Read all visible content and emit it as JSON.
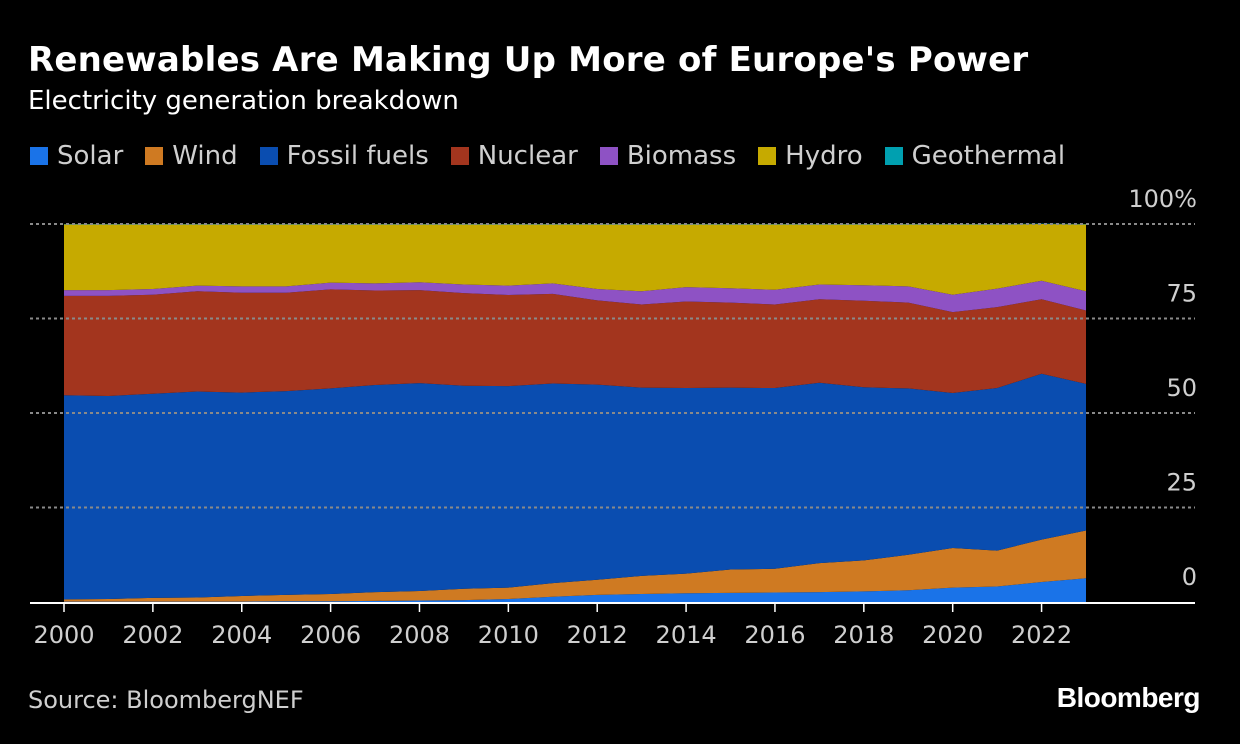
{
  "header": {
    "title": "Renewables Are Making Up More of Europe's Power",
    "subtitle": "Electricity generation breakdown"
  },
  "footer": {
    "source": "Source: BloombergNEF",
    "brand": "Bloomberg"
  },
  "chart_data": {
    "type": "area",
    "stacked": true,
    "title": "Renewables Are Making Up More of Europe's Power",
    "subtitle": "Electricity generation breakdown",
    "xlabel": "",
    "ylabel": "",
    "ylim": [
      0,
      100
    ],
    "y_ticks": [
      0,
      25,
      50,
      75,
      100
    ],
    "y_tick_labels": [
      "0",
      "25",
      "50",
      "75",
      "100%"
    ],
    "y_axis_side": "right",
    "x_ticks": [
      2000,
      2002,
      2004,
      2006,
      2008,
      2010,
      2012,
      2014,
      2016,
      2018,
      2020,
      2022
    ],
    "x_tick_labels": [
      "2000",
      "2002",
      "2004",
      "2006",
      "2008",
      "2010",
      "2012",
      "2014",
      "2016",
      "2018",
      "2020",
      "2022"
    ],
    "grid": "horizontal dotted",
    "legend_position": "top",
    "x": [
      2000,
      2001,
      2002,
      2003,
      2004,
      2005,
      2006,
      2007,
      2008,
      2009,
      2010,
      2011,
      2012,
      2013,
      2014,
      2015,
      2016,
      2017,
      2018,
      2019,
      2020,
      2021,
      2022,
      2023
    ],
    "series": [
      {
        "name": "Solar",
        "color": "#1a73e8",
        "values": [
          0.1,
          0.1,
          0.1,
          0.1,
          0.1,
          0.2,
          0.2,
          0.3,
          0.4,
          0.5,
          0.8,
          1.4,
          1.9,
          2.1,
          2.3,
          2.4,
          2.5,
          2.6,
          2.8,
          3.1,
          3.8,
          4.1,
          5.3,
          6.3
        ]
      },
      {
        "name": "Wind",
        "color": "#cf7a22",
        "values": [
          0.6,
          0.7,
          1.0,
          1.1,
          1.5,
          1.7,
          1.9,
          2.3,
          2.5,
          3.0,
          3.0,
          3.6,
          4.0,
          4.8,
          5.2,
          6.2,
          6.3,
          7.7,
          8.2,
          9.4,
          10.5,
          9.5,
          11.2,
          12.6
        ]
      },
      {
        "name": "Fossil fuels",
        "color": "#0a4db0",
        "values": [
          54.0,
          53.7,
          54.0,
          54.5,
          53.8,
          53.9,
          54.4,
          54.8,
          55.0,
          53.7,
          53.3,
          52.8,
          51.6,
          49.8,
          49.1,
          48.1,
          47.8,
          47.7,
          45.8,
          44.0,
          41.0,
          43.0,
          43.9,
          38.8
        ]
      },
      {
        "name": "Nuclear",
        "color": "#a3351e",
        "values": [
          26.3,
          26.5,
          26.2,
          26.5,
          26.4,
          26.0,
          26.2,
          25.0,
          24.6,
          24.5,
          24.1,
          23.7,
          22.3,
          22.0,
          22.9,
          22.5,
          22.1,
          22.1,
          22.9,
          22.7,
          21.4,
          21.4,
          19.7,
          19.4
        ]
      },
      {
        "name": "Biomass",
        "color": "#8e52c4",
        "values": [
          1.5,
          1.5,
          1.5,
          1.5,
          1.7,
          1.7,
          1.8,
          1.9,
          2.1,
          2.3,
          2.5,
          2.8,
          3.0,
          3.5,
          3.8,
          3.8,
          3.9,
          3.9,
          4.1,
          4.3,
          4.6,
          4.9,
          4.9,
          5.1
        ]
      },
      {
        "name": "Hydro",
        "color": "#c6aa00",
        "values": [
          17.4,
          17.4,
          17.1,
          16.2,
          16.4,
          16.4,
          15.4,
          15.6,
          15.3,
          15.9,
          16.2,
          15.6,
          17.1,
          17.7,
          16.6,
          16.9,
          17.3,
          15.9,
          16.1,
          16.4,
          18.6,
          17.0,
          15.0,
          17.7
        ]
      },
      {
        "name": "Geothermal",
        "color": "#00a0b0",
        "values": [
          0.1,
          0.1,
          0.1,
          0.1,
          0.1,
          0.1,
          0.1,
          0.1,
          0.1,
          0.1,
          0.1,
          0.1,
          0.1,
          0.1,
          0.1,
          0.1,
          0.1,
          0.1,
          0.1,
          0.1,
          0.1,
          0.1,
          0.1,
          0.1
        ]
      }
    ]
  }
}
